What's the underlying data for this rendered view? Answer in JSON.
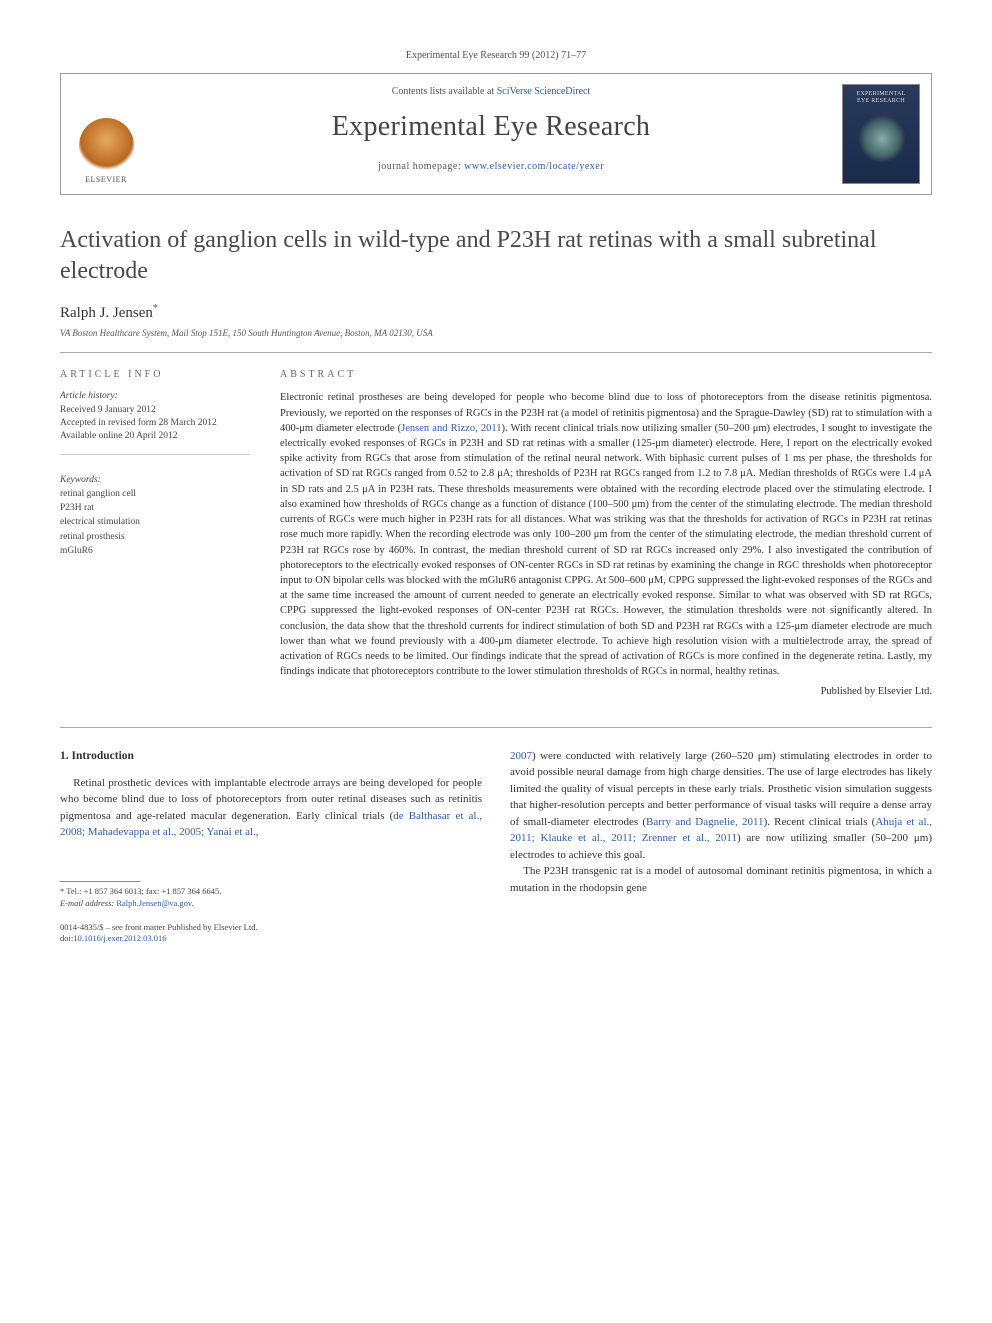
{
  "citation": "Experimental Eye Research 99 (2012) 71–77",
  "header": {
    "contents_prefix": "Contents lists available at ",
    "contents_link": "SciVerse ScienceDirect",
    "journal": "Experimental Eye Research",
    "homepage_prefix": "journal homepage: ",
    "homepage_url": "www.elsevier.com/locate/yexer",
    "publisher": "ELSEVIER",
    "cover_label_1": "EXPERIMENTAL",
    "cover_label_2": "EYE RESEARCH"
  },
  "article": {
    "title": "Activation of ganglion cells in wild-type and P23H rat retinas with a small subretinal electrode",
    "author": "Ralph J. Jensen",
    "author_marker": "*",
    "affiliation": "VA Boston Healthcare System, Mail Stop 151E, 150 South Huntington Avenue, Boston, MA 02130, USA"
  },
  "info": {
    "section_label": "ARTICLE INFO",
    "history_head": "Article history:",
    "received": "Received 9 January 2012",
    "accepted": "Accepted in revised form 28 March 2012",
    "online": "Available online 20 April 2012",
    "keywords_head": "Keywords:",
    "keywords": [
      "retinal ganglion cell",
      "P23H rat",
      "electrical stimulation",
      "retinal prosthesis",
      "mGluR6"
    ]
  },
  "abstract": {
    "section_label": "ABSTRACT",
    "text_pre": "Electronic retinal prostheses are being developed for people who become blind due to loss of photoreceptors from the disease retinitis pigmentosa. Previously, we reported on the responses of RGCs in the P23H rat (a model of retinitis pigmentosa) and the Sprague-Dawley (SD) rat to stimulation with a 400-μm diameter electrode (",
    "ref": "Jensen and Rizzo, 2011",
    "text_post": "). With recent clinical trials now utilizing smaller (50–200 μm) electrodes, I sought to investigate the electrically evoked responses of RGCs in P23H and SD rat retinas with a smaller (125-μm diameter) electrode. Here, I report on the electrically evoked spike activity from RGCs that arose from stimulation of the retinal neural network. With biphasic current pulses of 1 ms per phase, the thresholds for activation of SD rat RGCs ranged from 0.52 to 2.8 μA; thresholds of P23H rat RGCs ranged from 1.2 to 7.8 μA. Median thresholds of RGCs were 1.4 μA in SD rats and 2.5 μA in P23H rats. These thresholds measurements were obtained with the recording electrode placed over the stimulating electrode. I also examined how thresholds of RGCs change as a function of distance (100–500 μm) from the center of the stimulating electrode. The median threshold currents of RGCs were much higher in P23H rats for all distances. What was striking was that the thresholds for activation of RGCs in P23H rat retinas rose much more rapidly. When the recording electrode was only 100–200 μm from the center of the stimulating electrode, the median threshold current of P23H rat RGCs rose by 460%. In contrast, the median threshold current of SD rat RGCs increased only 29%. I also investigated the contribution of photoreceptors to the electrically evoked responses of ON-center RGCs in SD rat retinas by examining the change in RGC thresholds when photoreceptor input to ON bipolar cells was blocked with the mGluR6 antagonist CPPG. At 500–600 μM, CPPG suppressed the light-evoked responses of the RGCs and at the same time increased the amount of current needed to generate an electrically evoked response. Similar to what was observed with SD rat RGCs, CPPG suppressed the light-evoked responses of ON-center P23H rat RGCs. However, the stimulation thresholds were not significantly altered. In conclusion, the data show that the threshold currents for indirect stimulation of both SD and P23H rat RGCs with a 125-μm diameter electrode are much lower than what we found previously with a 400-μm diameter electrode. To achieve high resolution vision with a multielectrode array, the spread of activation of RGCs needs to be limited. Our findings indicate that the spread of activation of RGCs is more confined in the degenerate retina. Lastly, my findings indicate that photoreceptors contribute to the lower stimulation thresholds of RGCs in normal, healthy retinas.",
    "published_by": "Published by Elsevier Ltd."
  },
  "body": {
    "heading": "1. Introduction",
    "col1_p1_pre": "Retinal prosthetic devices with implantable electrode arrays are being developed for people who become blind due to loss of photoreceptors from outer retinal diseases such as retinitis pigmentosa and age-related macular degeneration. Early clinical trials (",
    "col1_ref": "de Balthasar et al., 2008; Mahadevappa et al., 2005; Yanai et al.,",
    "col2_ref1": "2007",
    "col2_p1_mid": ") were conducted with relatively large (260–520 μm) stimulating electrodes in order to avoid possible neural damage from high charge densities. The use of large electrodes has likely limited the quality of visual percepts in these early trials. Prosthetic vision simulation suggests that higher-resolution percepts and better performance of visual tasks will require a dense array of small-diameter electrodes (",
    "col2_ref2": "Barry and Dagnelie, 2011",
    "col2_p1_mid2": "). Recent clinical trials (",
    "col2_ref3": "Ahuja et al., 2011; Klauke et al., 2011; Zrenner et al., 2011",
    "col2_p1_end": ") are now utilizing smaller (50–200 μm) electrodes to achieve this goal.",
    "col2_p2": "The P23H transgenic rat is a model of autosomal dominant retinitis pigmentosa, in which a mutation in the rhodopsin gene"
  },
  "footnote": {
    "tel_label": "* Tel.: ",
    "tel": "+1 857 364 6013",
    "fax_label": "; fax: ",
    "fax": "+1 857 364 6645",
    "email_label": "E-mail address: ",
    "email": "Ralph.Jensen@va.gov",
    "period": "."
  },
  "footer": {
    "issn_line": "0014-4835/$ – see front matter Published by Elsevier Ltd.",
    "doi_prefix": "doi:",
    "doi": "10.1016/j.exer.2012.03.016"
  }
}
